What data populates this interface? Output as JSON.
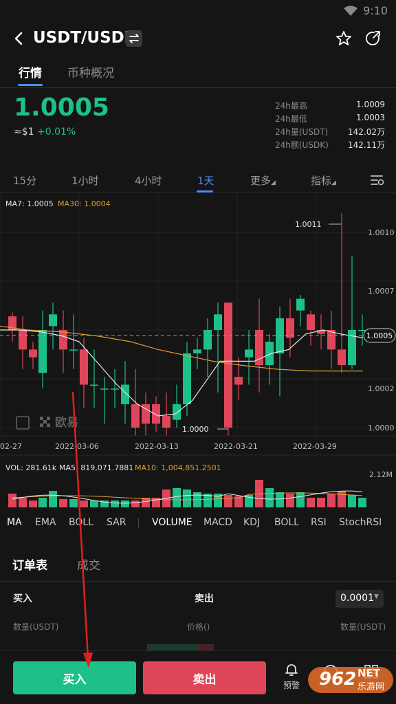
{
  "status_bar": {
    "time": "9:10"
  },
  "header": {
    "pair": "USDT/USDK"
  },
  "tabs": [
    {
      "label": "行情",
      "active": true
    },
    {
      "label": "币种概况",
      "active": false
    }
  ],
  "ticker": {
    "price": "1.0005",
    "approx": "≈$1",
    "change": "+0.01%",
    "stats": [
      {
        "k": "24h最高",
        "v": "1.0009"
      },
      {
        "k": "24h最低",
        "v": "1.0003"
      },
      {
        "k": "24h量(USDT)",
        "v": "142.02万"
      },
      {
        "k": "24h额(USDK)",
        "v": "142.11万"
      }
    ]
  },
  "periods": [
    {
      "label": "15分",
      "active": false
    },
    {
      "label": "1小时",
      "active": false
    },
    {
      "label": "4小时",
      "active": false
    },
    {
      "label": "1天",
      "active": true
    },
    {
      "label": "更多",
      "active": false
    },
    {
      "label": "指标",
      "active": false
    }
  ],
  "chart": {
    "ma_legend": {
      "ma7": "MA7: 1.0005",
      "ma30": "MA30: 1.0004"
    },
    "price_ticks": [
      "1.0010",
      "1.0007",
      "1.0005",
      "1.0002",
      "1.0000"
    ],
    "hi_label": "1.0011",
    "lo_label": "1.0000",
    "last_price": "1.0005",
    "dates": [
      "02-27",
      "2022-03-06",
      "2022-03-13",
      "2022-03-21",
      "2022-03-29"
    ],
    "watermark": "欧易",
    "vol_legend": {
      "vol": "VOL: 281.61k",
      "ma5": "MA5: 819,071.7881",
      "ma10": "MA10: 1,004,851.2501"
    },
    "vol_max": "2.12M",
    "colors": {
      "up": "#1ec08a",
      "down": "#e0465a",
      "ma7": "#e8e8e8",
      "ma30": "#e0a030",
      "accent": "#4b8df8"
    }
  },
  "chart_data": {
    "type": "candlestick",
    "x": [
      "02-27",
      "2022-03-06",
      "2022-03-13",
      "2022-03-21",
      "2022-03-29"
    ],
    "y_ticks": [
      1.0,
      1.0002,
      1.0005,
      1.0007,
      1.001
    ],
    "ylim": [
      1.0,
      1.0011
    ],
    "last": 1.0005,
    "high": 1.0011,
    "low": 1.0,
    "series": [
      {
        "name": "MA7",
        "value": 1.0005
      },
      {
        "name": "MA30",
        "value": 1.0004
      }
    ],
    "volume": {
      "VOL": "281.61k",
      "MA5": 819071.7881,
      "MA10": 1004851.2501,
      "max": "2.12M"
    }
  },
  "indicators": [
    "MA",
    "EMA",
    "BOLL",
    "SAR",
    "VOLUME",
    "MACD",
    "KDJ",
    "BOLL",
    "RSI",
    "StochRSI"
  ],
  "orderbook": {
    "tabs": [
      {
        "label": "订单表",
        "active": true
      },
      {
        "label": "成交",
        "active": false
      }
    ],
    "buy": "买入",
    "sell": "卖出",
    "tick": "0.0001",
    "col_qty_left": "数量(USDT)",
    "col_price": "价格()",
    "col_qty_right": "数量(USDT)"
  },
  "bottom": {
    "buy": "买入",
    "sell": "卖出",
    "alert": "预警"
  },
  "watermark_site": {
    "text": "962",
    "sub": "NET",
    "cn": "乐游网"
  }
}
